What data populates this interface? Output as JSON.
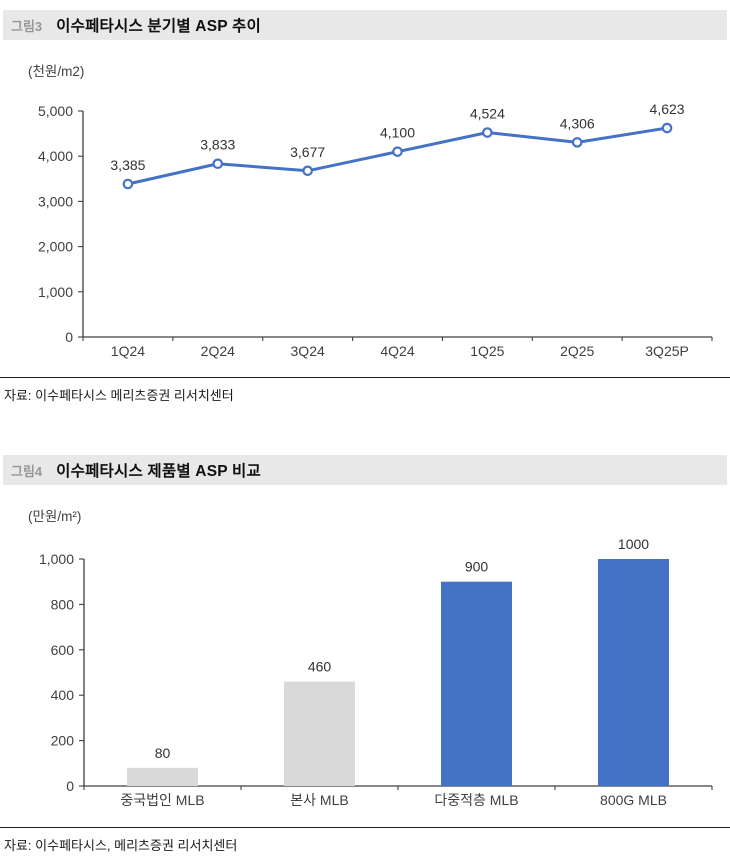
{
  "figure3": {
    "tag": "그림3",
    "title": "이수페타시스 분기별 ASP 추이",
    "unit": "(천원/m2)",
    "source": "자료: 이수페타시스 메리츠증권 리서치센터"
  },
  "figure4": {
    "tag": "그림4",
    "title": "이수페타시스 제품별 ASP 비교",
    "unit": "(만원/m²)",
    "source": "자료: 이수페타시스, 메리츠증권 리서치센터"
  },
  "colors": {
    "accent_blue": "#4472C4",
    "bar_gray": "#D9D9D9",
    "header_bg": "#E8E8E8",
    "axis_text": "#404040"
  },
  "chart_data": [
    {
      "type": "line",
      "title": "이수페타시스 분기별 ASP 추이",
      "categories": [
        "1Q24",
        "2Q24",
        "3Q24",
        "4Q24",
        "1Q25",
        "2Q25",
        "3Q25P"
      ],
      "values": [
        3385,
        3833,
        3677,
        4100,
        4524,
        4306,
        4623
      ],
      "data_labels": [
        "3,385",
        "3,833",
        "3,677",
        "4,100",
        "4,524",
        "4,306",
        "4,623"
      ],
      "xlabel": "",
      "ylabel": "(천원/m2)",
      "ylim": [
        0,
        5000
      ],
      "ytick_step": 1000,
      "grid": false,
      "legend": "none",
      "line_color": "#4472C4",
      "marker": "open-circle"
    },
    {
      "type": "bar",
      "title": "이수페타시스 제품별 ASP 비교",
      "categories": [
        "중국법인 MLB",
        "본사 MLB",
        "다중적층 MLB",
        "800G MLB"
      ],
      "values": [
        80,
        460,
        900,
        1000
      ],
      "data_labels": [
        "80",
        "460",
        "900",
        "1000"
      ],
      "bar_colors": [
        "#D9D9D9",
        "#D9D9D9",
        "#4472C4",
        "#4472C4"
      ],
      "xlabel": "",
      "ylabel": "(만원/m²)",
      "ylim": [
        0,
        1000
      ],
      "ytick_step": 200,
      "grid": false,
      "legend": "none"
    }
  ]
}
